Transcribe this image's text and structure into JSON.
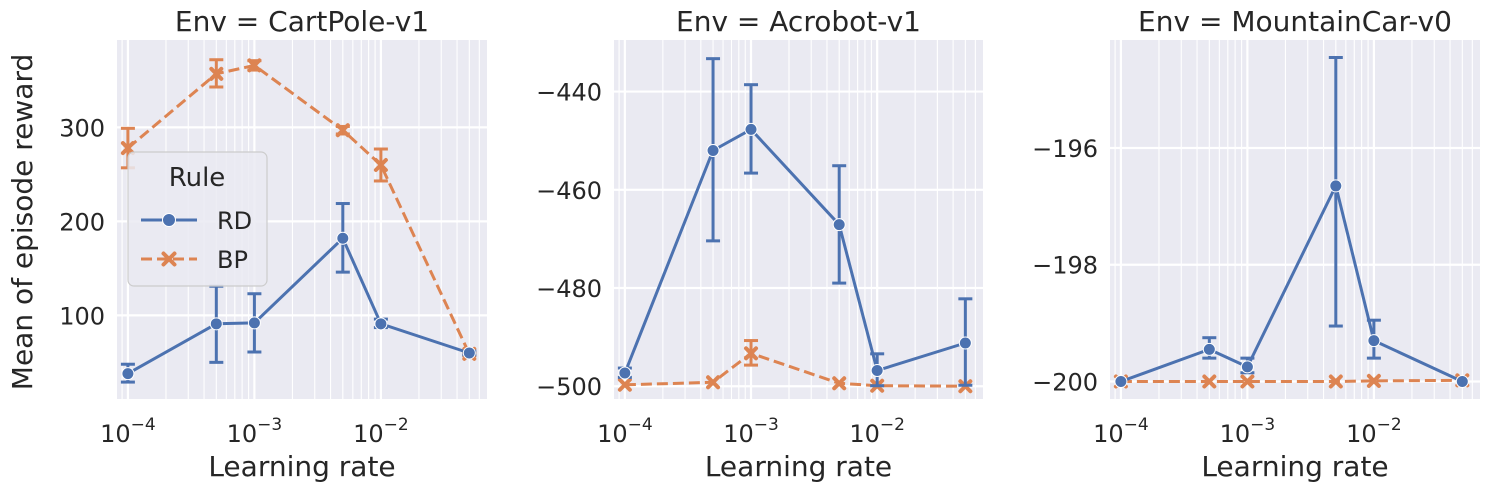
{
  "figure": {
    "ylabel": "Mean of episode reward",
    "xlabel": "Learning rate"
  },
  "legend": {
    "title": "Rule",
    "entries": [
      {
        "label": "RD",
        "color": "#4c72b0",
        "marker": "circle",
        "dash": "solid"
      },
      {
        "label": "BP",
        "color": "#dd8452",
        "marker": "x",
        "dash": "dashed"
      }
    ]
  },
  "x_ticks": [
    {
      "value": 0.0001,
      "base": "10",
      "exp": "−4"
    },
    {
      "value": 0.001,
      "base": "10",
      "exp": "−3"
    },
    {
      "value": 0.01,
      "base": "10",
      "exp": "−2"
    }
  ],
  "chart_data": [
    {
      "type": "line",
      "title": "Env = CartPole-v1",
      "xscale": "log",
      "xlim": [
        8.2e-05,
        0.069
      ],
      "ylim": [
        11,
        393
      ],
      "yticks": [
        100,
        200,
        300
      ],
      "yticklabels": [
        "100",
        "200",
        "300"
      ],
      "x": [
        0.0001,
        0.0005,
        0.001,
        0.005,
        0.01,
        0.05
      ],
      "series": [
        {
          "name": "RD",
          "values": [
            38,
            91,
            92,
            182,
            91,
            60
          ],
          "err_low": [
            29,
            50,
            61,
            146,
            87,
            58
          ],
          "err_high": [
            48,
            131,
            123,
            219,
            96,
            62
          ]
        },
        {
          "name": "BP",
          "values": [
            278,
            357,
            366,
            297,
            260,
            59
          ],
          "err_low": [
            257,
            343,
            361,
            293,
            243,
            57
          ],
          "err_high": [
            299,
            372,
            371,
            301,
            277,
            61
          ]
        }
      ]
    },
    {
      "type": "line",
      "title": "Env = Acrobot-v1",
      "xscale": "log",
      "xlim": [
        8.2e-05,
        0.069
      ],
      "ylim": [
        -502.6,
        -429.5
      ],
      "yticks": [
        -440,
        -460,
        -480,
        -500
      ],
      "yticklabels": [
        "−440",
        "−460",
        "−480",
        "−500"
      ],
      "x": [
        0.0001,
        0.0005,
        0.001,
        0.005,
        0.01,
        0.05
      ],
      "series": [
        {
          "name": "RD",
          "values": [
            -497.3,
            -452.0,
            -447.7,
            -467.1,
            -496.8,
            -491.2
          ],
          "err_low": [
            -498.2,
            -470.4,
            -456.6,
            -479.0,
            -499.9,
            -499.8
          ],
          "err_high": [
            -496.3,
            -433.3,
            -438.6,
            -455.1,
            -493.4,
            -482.2
          ]
        },
        {
          "name": "BP",
          "values": [
            -499.7,
            -499.2,
            -493.3,
            -499.4,
            -499.9,
            -500.0
          ],
          "err_low": [
            -499.7,
            -499.2,
            -495.7,
            -499.4,
            -499.9,
            -500.0
          ],
          "err_high": [
            -499.7,
            -499.2,
            -490.7,
            -499.4,
            -499.9,
            -500.0
          ]
        }
      ]
    },
    {
      "type": "line",
      "title": "Env = MountainCar-v0",
      "xscale": "log",
      "xlim": [
        8.2e-05,
        0.069
      ],
      "ylim": [
        -200.3,
        -194.15
      ],
      "yticks": [
        -196,
        -198,
        -200
      ],
      "yticklabels": [
        "−196",
        "−198",
        "−200"
      ],
      "x": [
        0.0001,
        0.0005,
        0.001,
        0.005,
        0.01,
        0.05
      ],
      "series": [
        {
          "name": "RD",
          "values": [
            -200.0,
            -199.45,
            -199.75,
            -196.65,
            -199.3,
            -200.0
          ],
          "err_low": [
            -200.0,
            -199.6,
            -199.85,
            -199.05,
            -199.6,
            -200.0
          ],
          "err_high": [
            -200.0,
            -199.25,
            -199.6,
            -194.45,
            -198.95,
            -200.0
          ]
        },
        {
          "name": "BP",
          "values": [
            -200.0,
            -200.0,
            -200.0,
            -200.0,
            -199.99,
            -199.98
          ],
          "err_low": [
            -200.0,
            -200.0,
            -200.0,
            -200.0,
            -199.99,
            -199.98
          ],
          "err_high": [
            -200.0,
            -200.0,
            -200.0,
            -200.0,
            -199.99,
            -199.98
          ]
        }
      ]
    }
  ]
}
